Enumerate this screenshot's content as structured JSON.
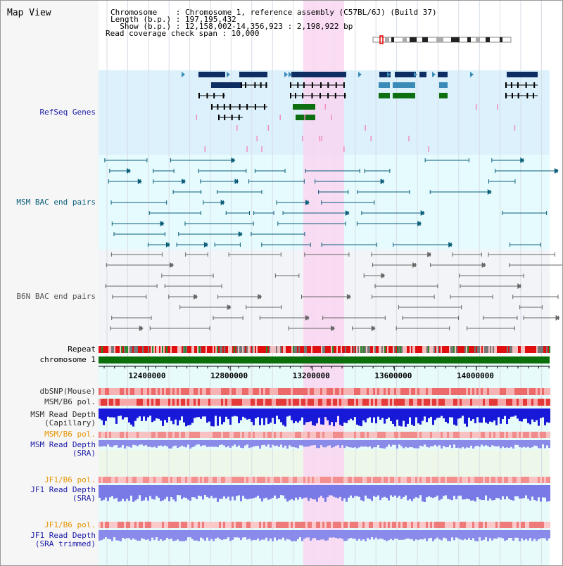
{
  "header": {
    "view_title": "Map View",
    "chromosome_line": "Chromosome    : Chromosome 1, reference assembly (C57BL/6J) (Build 37)",
    "length_line": "Length (b.p.) : 197,195,432",
    "show_line": "  Show (b.p.) : 12,158,002-14,356,923 : 2,198,922 bp",
    "coverage_line": "Read coverage check span : 10,000"
  },
  "tracks": {
    "refseq": {
      "label": "RefSeq Genes",
      "color": "#1a1aa6"
    },
    "msm_bac": {
      "label": "MSM BAC end pairs",
      "color": "#0b5e7a"
    },
    "b6n_bac": {
      "label": "B6N BAC end pairs",
      "color": "#555555"
    },
    "repeat": {
      "label": "Repeat"
    },
    "chromosome": {
      "label": "chromosome 1"
    },
    "dbsnp": {
      "label": "dbSNP(Mouse)",
      "color": "#333333"
    },
    "msm_b6_pol_1": {
      "label": "MSM/B6 pol.",
      "color": "#333333"
    },
    "msm_depth_cap": {
      "label": "MSM Read Depth\n(Capillary)",
      "color": "#333333"
    },
    "msm_b6_pol_2": {
      "label": "MSM/B6 pol.",
      "color": "#e69500"
    },
    "msm_depth_sra": {
      "label": "MSM Read Depth\n(SRA)",
      "color": "#1a1aa6"
    },
    "jf1_b6_pol_1": {
      "label": "JF1/B6 pol.",
      "color": "#e69500"
    },
    "jf1_depth_sra": {
      "label": "JF1 Read Depth\n(SRA)",
      "color": "#1a1aa6"
    },
    "jf1_b6_pol_2": {
      "label": "JF1/B6 pol.",
      "color": "#e69500"
    },
    "jf1_depth_trim": {
      "label": "JF1 Read Depth\n(SRA trimmed)",
      "color": "#1a1aa6"
    }
  },
  "axis": {
    "ticks": [
      {
        "value": 12400000,
        "label": "12400000"
      },
      {
        "value": 12800000,
        "label": "12800000"
      },
      {
        "value": 13200000,
        "label": "13200000"
      },
      {
        "value": 13600000,
        "label": "13600000"
      },
      {
        "value": 14000000,
        "label": "14000000"
      }
    ]
  },
  "colors": {
    "refseq_bg": "#dcf1fb",
    "msm_bg": "#e6fbfd",
    "b6n_bg": "#f2f4f7",
    "highlight": "#f9d6f1",
    "gene_dark": "#0e2d63",
    "gene_light": "#3b8bb8",
    "gene_green": "#0d6e12",
    "pink": "#f08fc0",
    "chromosome_bar": "#0a6e0a"
  }
}
